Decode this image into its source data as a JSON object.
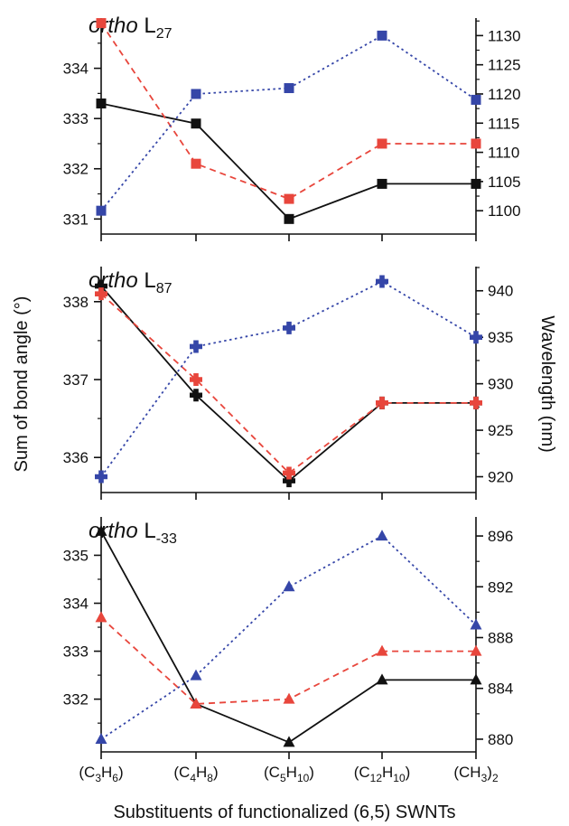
{
  "xlabel": "Substituents of functionalized (6,5) SWNTs",
  "ylabel_left": "Sum of bond angle (°)",
  "ylabel_right": "Wavelength (nm)",
  "categories": [
    {
      "base": "(C",
      "sub1": "3",
      "mid": "H",
      "sub2": "6",
      "end": ")"
    },
    {
      "base": "(C",
      "sub1": "4",
      "mid": "H",
      "sub2": "8",
      "end": ")"
    },
    {
      "base": "(C",
      "sub1": "5",
      "mid": "H",
      "sub2": "10",
      "end": ")"
    },
    {
      "base": "(C",
      "sub1": "12",
      "mid": "H",
      "sub2": "10",
      "end": ")"
    },
    {
      "base": "(CH",
      "sub1": "3",
      "mid": ")",
      "sub2": "2",
      "end": ""
    }
  ],
  "colors": {
    "black": "#111111",
    "red": "#e8463c",
    "blue": "#3546a8"
  },
  "chart_data": [
    {
      "type": "line",
      "title_italic": "ortho",
      "title_main": "L",
      "title_sub": "27",
      "marker": "square",
      "left_axis": {
        "ylim": [
          330.7,
          335.0
        ],
        "ticks": [
          331,
          332,
          333,
          334
        ],
        "tick_labels": [
          "331",
          "332",
          "333",
          "334"
        ]
      },
      "right_axis": {
        "ylim": [
          1096.0,
          1133.0
        ],
        "ticks": [
          1100,
          1105,
          1110,
          1115,
          1120,
          1125,
          1130
        ],
        "tick_labels": [
          "1100",
          "1105",
          "1110",
          "1115",
          "1120",
          "1125",
          "1130"
        ]
      },
      "series": [
        {
          "axis": "left",
          "color": "black",
          "style": "solid",
          "values": [
            333.3,
            332.9,
            331.0,
            331.7,
            331.7
          ]
        },
        {
          "axis": "left",
          "color": "red",
          "style": "dashed",
          "values": [
            334.9,
            332.1,
            331.4,
            332.5,
            332.5
          ]
        },
        {
          "axis": "right",
          "color": "blue",
          "style": "dotted",
          "values": [
            1100,
            1120,
            1121,
            1130,
            1119
          ]
        }
      ]
    },
    {
      "type": "line",
      "title_italic": "ortho",
      "title_main": "L",
      "title_sub": "87",
      "marker": "cross",
      "left_axis": {
        "ylim": [
          335.55,
          338.45
        ],
        "ticks": [
          336,
          337,
          338
        ],
        "tick_labels": [
          "336",
          "337",
          "338"
        ]
      },
      "right_axis": {
        "ylim": [
          918.3,
          942.6
        ],
        "ticks": [
          920,
          925,
          930,
          935,
          940
        ],
        "tick_labels": [
          "920",
          "925",
          "930",
          "935",
          "940"
        ]
      },
      "series": [
        {
          "axis": "left",
          "color": "black",
          "style": "solid",
          "values": [
            338.2,
            336.8,
            335.7,
            336.7,
            336.7
          ]
        },
        {
          "axis": "left",
          "color": "red",
          "style": "dashed",
          "values": [
            338.1,
            337.0,
            335.8,
            336.7,
            336.7
          ]
        },
        {
          "axis": "right",
          "color": "blue",
          "style": "dotted",
          "values": [
            920,
            934,
            936,
            941,
            935
          ]
        }
      ]
    },
    {
      "type": "line",
      "title_italic": "ortho",
      "title_main": "L",
      "title_sub": "-33",
      "marker": "triangle",
      "left_axis": {
        "ylim": [
          330.9,
          335.8
        ],
        "ticks": [
          332,
          333,
          334,
          335
        ],
        "tick_labels": [
          "332",
          "333",
          "334",
          "335"
        ]
      },
      "right_axis": {
        "ylim": [
          879.0,
          897.5
        ],
        "ticks": [
          880,
          884,
          888,
          892,
          896
        ],
        "tick_labels": [
          "880",
          "884",
          "888",
          "892",
          "896"
        ]
      },
      "series": [
        {
          "axis": "left",
          "color": "black",
          "style": "solid",
          "values": [
            335.5,
            331.9,
            331.1,
            332.4,
            332.4
          ]
        },
        {
          "axis": "left",
          "color": "red",
          "style": "dashed",
          "values": [
            333.7,
            331.9,
            332.0,
            333.0,
            333.0
          ]
        },
        {
          "axis": "right",
          "color": "blue",
          "style": "dotted",
          "values": [
            880,
            885,
            892,
            896,
            889
          ]
        }
      ]
    }
  ]
}
